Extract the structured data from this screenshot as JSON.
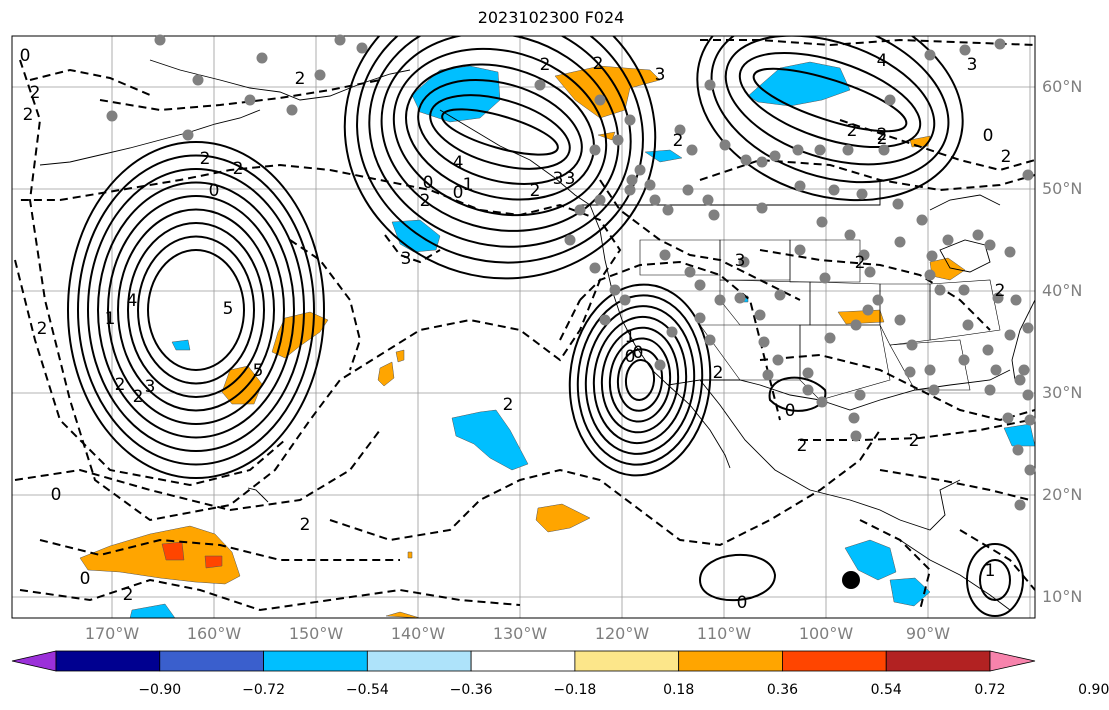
{
  "title": "2023102300 F024",
  "lat_labels": [
    "60°N",
    "50°N",
    "40°N",
    "30°N",
    "20°N",
    "10°N"
  ],
  "lon_labels": [
    "170°W",
    "160°W",
    "150°W",
    "140°W",
    "130°W",
    "120°W",
    "110°W",
    "100°W",
    "90°W"
  ],
  "contour_labels": [
    "0",
    "2",
    "2",
    "2",
    "2",
    "0",
    "2",
    "2",
    "2",
    "3",
    "2",
    "2",
    "4",
    "2",
    "0",
    "0",
    "1",
    "2",
    "3",
    "3",
    "4",
    "5",
    "1",
    "2",
    "3",
    "5",
    "2",
    "2",
    "3",
    "2",
    "0",
    "2",
    "0",
    "2",
    "0",
    "2",
    "2",
    "2",
    "3",
    "4",
    "3",
    "2",
    "0",
    "2",
    "2",
    "2",
    "2",
    "0",
    "1",
    "0",
    "1",
    "0"
  ],
  "colorbar": {
    "ticks": [
      "−0.90",
      "−0.72",
      "−0.54",
      "−0.36",
      "−0.18",
      "0.18",
      "0.36",
      "0.54",
      "0.72",
      "0.90"
    ],
    "colors": [
      "#9b30d9",
      "#000090",
      "#3a5fcd",
      "#00bfff",
      "#aee3fa",
      "#ffffff",
      "#fce68a",
      "#ffa500",
      "#ff4500",
      "#b22222",
      "#f783ac"
    ]
  }
}
